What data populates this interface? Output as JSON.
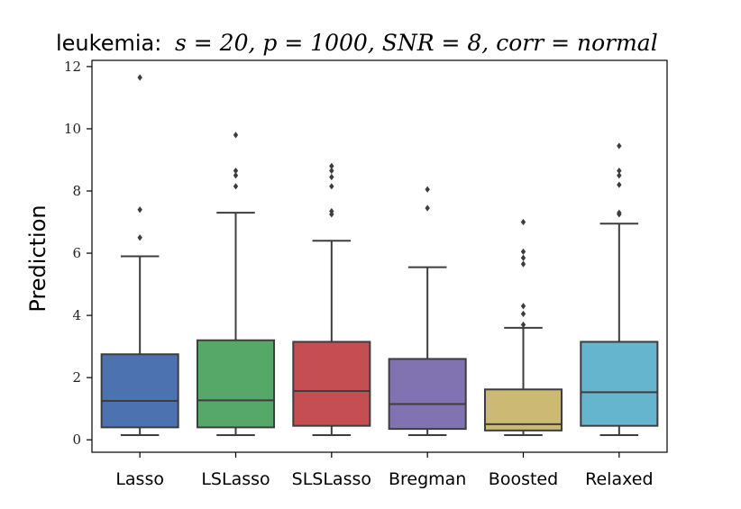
{
  "chart_data": {
    "type": "box",
    "title_prefix": "leukemia:",
    "title_math": "s = 20, p = 1000, SNR = 8, corr = normal",
    "xlabel": "",
    "ylabel": "Prediction",
    "ylim": [
      -0.4,
      12.2
    ],
    "yticks": [
      0,
      2,
      4,
      6,
      8,
      10,
      12
    ],
    "grid": false,
    "categories": [
      "Lasso",
      "LSLasso",
      "SLSLasso",
      "Bregman",
      "Boosted",
      "Relaxed"
    ],
    "series": [
      {
        "name": "Lasso",
        "color": "#4c72b0",
        "whisker_low": 0.15,
        "q1": 0.4,
        "median": 1.25,
        "q3": 2.75,
        "whisker_high": 5.9,
        "outliers": [
          6.5,
          7.4,
          11.65
        ]
      },
      {
        "name": "LSLasso",
        "color": "#55a868",
        "whisker_low": 0.15,
        "q1": 0.4,
        "median": 1.27,
        "q3": 3.2,
        "whisker_high": 7.3,
        "outliers": [
          8.15,
          8.5,
          8.65,
          9.8
        ]
      },
      {
        "name": "SLSLasso",
        "color": "#c44e52",
        "whisker_low": 0.15,
        "q1": 0.45,
        "median": 1.57,
        "q3": 3.15,
        "whisker_high": 6.4,
        "outliers": [
          7.25,
          7.35,
          8.15,
          8.45,
          8.65,
          8.8
        ]
      },
      {
        "name": "Bregman",
        "color": "#8172b2",
        "whisker_low": 0.15,
        "q1": 0.35,
        "median": 1.15,
        "q3": 2.6,
        "whisker_high": 5.55,
        "outliers": [
          7.45,
          8.05
        ]
      },
      {
        "name": "Boosted",
        "color": "#ccb974",
        "whisker_low": 0.15,
        "q1": 0.3,
        "median": 0.5,
        "q3": 1.62,
        "whisker_high": 3.6,
        "outliers": [
          3.7,
          4.05,
          4.3,
          5.65,
          5.85,
          6.05,
          7.0
        ]
      },
      {
        "name": "Relaxed",
        "color": "#64b5cd",
        "whisker_low": 0.15,
        "q1": 0.45,
        "median": 1.53,
        "q3": 3.15,
        "whisker_high": 6.95,
        "outliers": [
          7.25,
          7.3,
          8.2,
          8.5,
          8.65,
          9.45
        ]
      }
    ]
  }
}
